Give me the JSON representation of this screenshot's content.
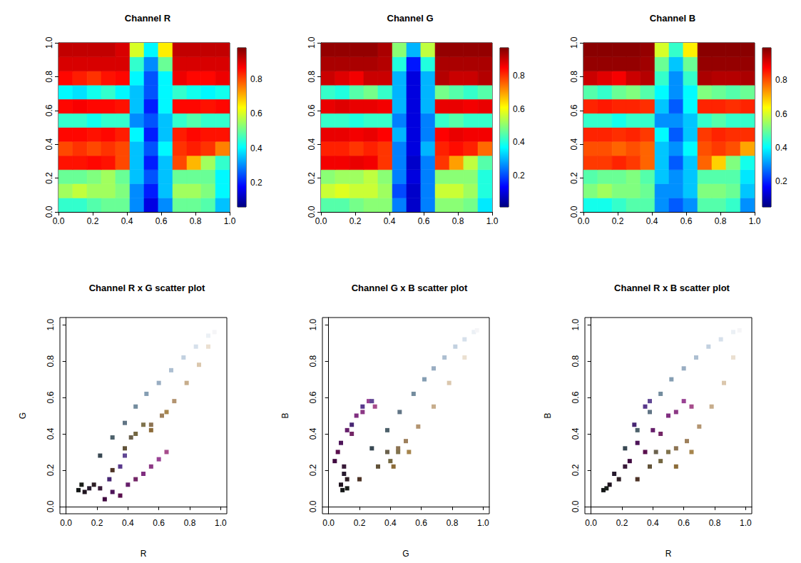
{
  "chart_data": [
    {
      "type": "heatmap",
      "title": "Channel R",
      "x_bins": [
        0,
        0.083,
        0.167,
        0.25,
        0.333,
        0.417,
        0.5,
        0.583,
        0.667,
        0.75,
        0.833,
        0.917,
        1
      ],
      "y_bins": [
        0,
        0.083,
        0.167,
        0.25,
        0.333,
        0.417,
        0.5,
        0.583,
        0.667,
        0.75,
        0.833,
        0.917,
        1
      ],
      "cells": [
        [
          0.45,
          0.45,
          0.48,
          0.5,
          0.5,
          0.3,
          0.15,
          0.3,
          0.5,
          0.5,
          0.48,
          0.35
        ],
        [
          0.55,
          0.58,
          0.55,
          0.55,
          0.52,
          0.3,
          0.2,
          0.35,
          0.55,
          0.55,
          0.52,
          0.4
        ],
        [
          0.5,
          0.5,
          0.52,
          0.55,
          0.5,
          0.35,
          0.25,
          0.35,
          0.5,
          0.5,
          0.5,
          0.4
        ],
        [
          0.85,
          0.85,
          0.86,
          0.85,
          0.8,
          0.35,
          0.2,
          0.35,
          0.8,
          0.7,
          0.55,
          0.45
        ],
        [
          0.8,
          0.82,
          0.8,
          0.82,
          0.8,
          0.35,
          0.25,
          0.4,
          0.82,
          0.84,
          0.82,
          0.75
        ],
        [
          0.86,
          0.86,
          0.85,
          0.86,
          0.84,
          0.4,
          0.2,
          0.35,
          0.84,
          0.86,
          0.85,
          0.85
        ],
        [
          0.45,
          0.45,
          0.42,
          0.45,
          0.45,
          0.3,
          0.25,
          0.35,
          0.45,
          0.48,
          0.45,
          0.45
        ],
        [
          0.86,
          0.87,
          0.86,
          0.86,
          0.85,
          0.35,
          0.2,
          0.4,
          0.86,
          0.86,
          0.85,
          0.86
        ],
        [
          0.4,
          0.38,
          0.42,
          0.45,
          0.4,
          0.35,
          0.25,
          0.4,
          0.45,
          0.42,
          0.4,
          0.42
        ],
        [
          0.86,
          0.84,
          0.82,
          0.85,
          0.86,
          0.4,
          0.25,
          0.4,
          0.88,
          0.86,
          0.86,
          0.88
        ],
        [
          0.9,
          0.9,
          0.9,
          0.9,
          0.9,
          0.45,
          0.3,
          0.5,
          0.9,
          0.9,
          0.9,
          0.9
        ],
        [
          0.92,
          0.92,
          0.92,
          0.92,
          0.9,
          0.6,
          0.4,
          0.65,
          0.92,
          0.92,
          0.92,
          0.92
        ]
      ],
      "color_range": [
        0.06,
        0.98
      ],
      "color_ticks": [
        0.2,
        0.4,
        0.6,
        0.8
      ],
      "xlim": [
        0,
        1
      ],
      "ylim": [
        0,
        1
      ],
      "xticks": [
        {
          "value": 0,
          "label": "0.0"
        },
        0.2,
        0.4,
        0.6,
        0.8,
        {
          "value": 1,
          "label": "1.0"
        }
      ],
      "yticks": [
        {
          "value": 0,
          "label": "0.0"
        },
        0.2,
        0.4,
        0.6,
        0.8,
        {
          "value": 1,
          "label": "1.0"
        }
      ]
    },
    {
      "type": "heatmap",
      "title": "Channel G",
      "x_bins": [
        0,
        0.083,
        0.167,
        0.25,
        0.333,
        0.417,
        0.5,
        0.583,
        0.667,
        0.75,
        0.833,
        0.917,
        1
      ],
      "y_bins": [
        0,
        0.083,
        0.167,
        0.25,
        0.333,
        0.417,
        0.5,
        0.583,
        0.667,
        0.75,
        0.833,
        0.917,
        1
      ],
      "cells": [
        [
          0.45,
          0.45,
          0.48,
          0.5,
          0.5,
          0.25,
          0.08,
          0.25,
          0.5,
          0.5,
          0.48,
          0.35
        ],
        [
          0.56,
          0.58,
          0.56,
          0.56,
          0.52,
          0.2,
          0.08,
          0.25,
          0.56,
          0.56,
          0.52,
          0.4
        ],
        [
          0.5,
          0.52,
          0.52,
          0.55,
          0.5,
          0.25,
          0.1,
          0.25,
          0.5,
          0.5,
          0.5,
          0.4
        ],
        [
          0.86,
          0.86,
          0.87,
          0.86,
          0.8,
          0.25,
          0.08,
          0.25,
          0.8,
          0.7,
          0.55,
          0.45
        ],
        [
          0.82,
          0.82,
          0.8,
          0.82,
          0.8,
          0.25,
          0.1,
          0.3,
          0.82,
          0.84,
          0.82,
          0.75
        ],
        [
          0.87,
          0.87,
          0.86,
          0.87,
          0.85,
          0.3,
          0.1,
          0.25,
          0.85,
          0.87,
          0.86,
          0.86
        ],
        [
          0.42,
          0.42,
          0.4,
          0.42,
          0.42,
          0.25,
          0.1,
          0.25,
          0.42,
          0.45,
          0.42,
          0.42
        ],
        [
          0.87,
          0.88,
          0.87,
          0.87,
          0.86,
          0.3,
          0.1,
          0.3,
          0.87,
          0.87,
          0.86,
          0.87
        ],
        [
          0.42,
          0.4,
          0.45,
          0.48,
          0.42,
          0.3,
          0.1,
          0.3,
          0.48,
          0.45,
          0.42,
          0.45
        ],
        [
          0.9,
          0.88,
          0.86,
          0.9,
          0.9,
          0.3,
          0.1,
          0.3,
          0.92,
          0.9,
          0.9,
          0.92
        ],
        [
          0.93,
          0.93,
          0.93,
          0.93,
          0.92,
          0.4,
          0.15,
          0.4,
          0.93,
          0.93,
          0.93,
          0.93
        ],
        [
          0.95,
          0.95,
          0.95,
          0.95,
          0.93,
          0.5,
          0.3,
          0.55,
          0.95,
          0.95,
          0.95,
          0.95
        ]
      ],
      "color_range": [
        0.01,
        0.97
      ],
      "color_ticks": [
        0.2,
        0.4,
        0.6,
        0.8
      ],
      "xlim": [
        0,
        1
      ],
      "ylim": [
        0,
        1
      ],
      "xticks": [
        {
          "value": 0,
          "label": "0.0"
        },
        0.2,
        0.4,
        0.6,
        0.8,
        {
          "value": 1,
          "label": "1.0"
        }
      ],
      "yticks": [
        {
          "value": 0,
          "label": "0.0"
        },
        0.2,
        0.4,
        0.6,
        0.8,
        {
          "value": 1,
          "label": "1.0"
        }
      ]
    },
    {
      "type": "heatmap",
      "title": "Channel B",
      "x_bins": [
        0,
        0.083,
        0.167,
        0.25,
        0.333,
        0.417,
        0.5,
        0.583,
        0.667,
        0.75,
        0.833,
        0.917,
        1
      ],
      "y_bins": [
        0,
        0.083,
        0.167,
        0.25,
        0.333,
        0.417,
        0.5,
        0.583,
        0.667,
        0.75,
        0.833,
        0.917,
        1
      ],
      "cells": [
        [
          0.42,
          0.42,
          0.45,
          0.48,
          0.48,
          0.3,
          0.25,
          0.3,
          0.48,
          0.48,
          0.45,
          0.3
        ],
        [
          0.52,
          0.55,
          0.52,
          0.52,
          0.5,
          0.3,
          0.3,
          0.35,
          0.52,
          0.52,
          0.5,
          0.35
        ],
        [
          0.48,
          0.5,
          0.5,
          0.52,
          0.48,
          0.35,
          0.3,
          0.35,
          0.48,
          0.48,
          0.48,
          0.38
        ],
        [
          0.82,
          0.82,
          0.84,
          0.82,
          0.78,
          0.35,
          0.25,
          0.35,
          0.78,
          0.68,
          0.52,
          0.42
        ],
        [
          0.8,
          0.8,
          0.78,
          0.8,
          0.78,
          0.35,
          0.3,
          0.4,
          0.8,
          0.82,
          0.8,
          0.72
        ],
        [
          0.84,
          0.84,
          0.83,
          0.84,
          0.82,
          0.4,
          0.25,
          0.35,
          0.82,
          0.84,
          0.83,
          0.83
        ],
        [
          0.45,
          0.45,
          0.42,
          0.45,
          0.45,
          0.3,
          0.3,
          0.35,
          0.45,
          0.48,
          0.45,
          0.45
        ],
        [
          0.84,
          0.85,
          0.84,
          0.84,
          0.83,
          0.35,
          0.25,
          0.4,
          0.84,
          0.84,
          0.83,
          0.84
        ],
        [
          0.48,
          0.45,
          0.5,
          0.52,
          0.48,
          0.4,
          0.3,
          0.4,
          0.52,
          0.5,
          0.48,
          0.5
        ],
        [
          0.92,
          0.9,
          0.88,
          0.92,
          0.94,
          0.45,
          0.3,
          0.45,
          0.95,
          0.94,
          0.94,
          0.95
        ],
        [
          0.97,
          0.97,
          0.97,
          0.97,
          0.96,
          0.5,
          0.35,
          0.5,
          0.97,
          0.97,
          0.97,
          0.97
        ],
        [
          0.98,
          0.98,
          0.98,
          0.98,
          0.97,
          0.6,
          0.45,
          0.65,
          0.98,
          0.98,
          0.98,
          0.98
        ]
      ],
      "color_range": [
        0.05,
        0.99
      ],
      "color_ticks": [
        0.2,
        0.4,
        0.6,
        0.8
      ],
      "xlim": [
        0,
        1
      ],
      "ylim": [
        0,
        1
      ],
      "xticks": [
        {
          "value": 0,
          "label": "0.0"
        },
        0.2,
        0.4,
        0.6,
        0.8,
        {
          "value": 1,
          "label": "1.0"
        }
      ],
      "yticks": [
        {
          "value": 0,
          "label": "0.0"
        },
        0.2,
        0.4,
        0.6,
        0.8,
        {
          "value": 1,
          "label": "1.0"
        }
      ]
    },
    {
      "type": "scatter",
      "title": "Channel R x G scatter plot",
      "x_label": "R",
      "y_label": "G",
      "x": [
        0.08,
        0.12,
        0.15,
        0.18,
        0.1,
        0.22,
        0.25,
        0.3,
        0.35,
        0.4,
        0.45,
        0.5,
        0.55,
        0.6,
        0.65,
        0.28,
        0.35,
        0.38,
        0.22,
        0.3,
        0.38,
        0.45,
        0.52,
        0.6,
        0.68,
        0.76,
        0.84,
        0.92,
        0.96,
        0.38,
        0.45,
        0.5,
        0.42,
        0.55,
        0.62,
        0.7,
        0.78,
        0.86,
        0.92,
        0.65,
        0.3,
        0.55
      ],
      "values": [
        0.09,
        0.08,
        0.1,
        0.12,
        0.12,
        0.1,
        0.04,
        0.08,
        0.06,
        0.12,
        0.15,
        0.18,
        0.22,
        0.26,
        0.3,
        0.15,
        0.22,
        0.28,
        0.28,
        0.38,
        0.46,
        0.55,
        0.62,
        0.68,
        0.75,
        0.82,
        0.88,
        0.94,
        0.96,
        0.32,
        0.4,
        0.45,
        0.38,
        0.45,
        0.5,
        0.58,
        0.68,
        0.78,
        0.88,
        0.52,
        0.2,
        0.42
      ],
      "colors": [
        "#141717",
        "#1F141F",
        "#261A2E",
        "#2E1F26",
        "#1A1F1A",
        "#381A38",
        "#400A40",
        "#4D1459",
        "#590F4D",
        "#661F6B",
        "#732666",
        "#802E80",
        "#8C3885",
        "#994294",
        "#A64D8C",
        "#472673",
        "#59388C",
        "#614794",
        "#384752",
        "#4D616B",
        "#617585",
        "#738C9E",
        "#859EB3",
        "#99ADC2",
        "#ADBFD1",
        "#C2D1E0",
        "#D6E0EB",
        "#EBF0F5",
        "#F5F5F7",
        "#615238",
        "#736640",
        "#80734D",
        "#6B614D",
        "#8C7352",
        "#9E805C",
        "#B39470",
        "#C7AD8C",
        "#DBC7AD",
        "#EBE0D1",
        "#A6854D",
        "#4D3326",
        "#8C6B38"
      ],
      "marker": "square",
      "xlim": [
        -0.04,
        1.04
      ],
      "ylim": [
        -0.04,
        1.04
      ],
      "xticks": [
        {
          "value": 0,
          "label": "0.0"
        },
        0.2,
        0.4,
        0.6,
        0.8,
        {
          "value": 1,
          "label": "1.0"
        }
      ],
      "yticks": [
        {
          "value": 0,
          "label": "0.0"
        },
        0.2,
        0.4,
        0.6,
        0.8,
        {
          "value": 1,
          "label": "1.0"
        }
      ]
    },
    {
      "type": "scatter",
      "title": "Channel G x B scatter plot",
      "x_label": "G",
      "y_label": "B",
      "x": [
        0.09,
        0.08,
        0.1,
        0.12,
        0.12,
        0.1,
        0.04,
        0.08,
        0.06,
        0.12,
        0.15,
        0.18,
        0.22,
        0.26,
        0.3,
        0.15,
        0.22,
        0.28,
        0.28,
        0.38,
        0.46,
        0.55,
        0.62,
        0.68,
        0.75,
        0.82,
        0.88,
        0.94,
        0.96,
        0.32,
        0.4,
        0.45,
        0.38,
        0.45,
        0.5,
        0.58,
        0.68,
        0.78,
        0.88,
        0.52,
        0.2,
        0.42
      ],
      "values": [
        0.09,
        0.12,
        0.18,
        0.15,
        0.1,
        0.22,
        0.25,
        0.35,
        0.3,
        0.42,
        0.4,
        0.5,
        0.52,
        0.58,
        0.55,
        0.45,
        0.55,
        0.58,
        0.32,
        0.42,
        0.52,
        0.62,
        0.7,
        0.76,
        0.82,
        0.88,
        0.92,
        0.96,
        0.97,
        0.22,
        0.25,
        0.3,
        0.3,
        0.32,
        0.36,
        0.44,
        0.55,
        0.68,
        0.82,
        0.3,
        0.15,
        0.22
      ],
      "colors": [
        "#141717",
        "#1F141F",
        "#261A2E",
        "#2E1F26",
        "#1A1F1A",
        "#381A38",
        "#400A40",
        "#4D1459",
        "#590F4D",
        "#661F6B",
        "#732666",
        "#802E80",
        "#8C3885",
        "#994294",
        "#A64D8C",
        "#472673",
        "#59388C",
        "#614794",
        "#384752",
        "#4D616B",
        "#617585",
        "#738C9E",
        "#859EB3",
        "#99ADC2",
        "#ADBFD1",
        "#C2D1E0",
        "#D6E0EB",
        "#EBF0F5",
        "#F5F5F7",
        "#615238",
        "#736640",
        "#80734D",
        "#6B614D",
        "#8C7352",
        "#9E805C",
        "#B39470",
        "#C7AD8C",
        "#DBC7AD",
        "#EBE0D1",
        "#A6854D",
        "#4D3326",
        "#8C6B38"
      ],
      "marker": "square",
      "xlim": [
        -0.04,
        1.04
      ],
      "ylim": [
        -0.04,
        1.04
      ],
      "xticks": [
        {
          "value": 0,
          "label": "0.0"
        },
        0.2,
        0.4,
        0.6,
        0.8,
        {
          "value": 1,
          "label": "1.0"
        }
      ],
      "yticks": [
        {
          "value": 0,
          "label": "0.0"
        },
        0.2,
        0.4,
        0.6,
        0.8,
        {
          "value": 1,
          "label": "1.0"
        }
      ]
    },
    {
      "type": "scatter",
      "title": "Channel R x B scatter plot",
      "x_label": "R",
      "y_label": "B",
      "x": [
        0.08,
        0.12,
        0.15,
        0.18,
        0.1,
        0.22,
        0.25,
        0.3,
        0.35,
        0.4,
        0.45,
        0.5,
        0.55,
        0.6,
        0.65,
        0.28,
        0.35,
        0.38,
        0.22,
        0.3,
        0.38,
        0.45,
        0.52,
        0.6,
        0.68,
        0.76,
        0.84,
        0.92,
        0.96,
        0.38,
        0.45,
        0.5,
        0.42,
        0.55,
        0.62,
        0.7,
        0.78,
        0.86,
        0.92,
        0.65,
        0.3,
        0.55
      ],
      "values": [
        0.09,
        0.12,
        0.18,
        0.15,
        0.1,
        0.22,
        0.25,
        0.35,
        0.3,
        0.42,
        0.4,
        0.5,
        0.52,
        0.58,
        0.55,
        0.45,
        0.55,
        0.58,
        0.32,
        0.42,
        0.52,
        0.62,
        0.7,
        0.76,
        0.82,
        0.88,
        0.92,
        0.96,
        0.97,
        0.22,
        0.25,
        0.3,
        0.3,
        0.32,
        0.36,
        0.44,
        0.55,
        0.68,
        0.82,
        0.3,
        0.15,
        0.22
      ],
      "colors": [
        "#141717",
        "#1F141F",
        "#261A2E",
        "#2E1F26",
        "#1A1F1A",
        "#381A38",
        "#400A40",
        "#4D1459",
        "#590F4D",
        "#661F6B",
        "#732666",
        "#802E80",
        "#8C3885",
        "#994294",
        "#A64D8C",
        "#472673",
        "#59388C",
        "#614794",
        "#384752",
        "#4D616B",
        "#617585",
        "#738C9E",
        "#859EB3",
        "#99ADC2",
        "#ADBFD1",
        "#C2D1E0",
        "#D6E0EB",
        "#EBF0F5",
        "#F5F5F7",
        "#615238",
        "#736640",
        "#80734D",
        "#6B614D",
        "#8C7352",
        "#9E805C",
        "#B39470",
        "#C7AD8C",
        "#DBC7AD",
        "#EBE0D1",
        "#A6854D",
        "#4D3326",
        "#8C6B38"
      ],
      "marker": "square",
      "xlim": [
        -0.04,
        1.04
      ],
      "ylim": [
        -0.04,
        1.04
      ],
      "xticks": [
        {
          "value": 0,
          "label": "0.0"
        },
        0.2,
        0.4,
        0.6,
        0.8,
        {
          "value": 1,
          "label": "1.0"
        }
      ],
      "yticks": [
        {
          "value": 0,
          "label": "0.0"
        },
        0.2,
        0.4,
        0.6,
        0.8,
        {
          "value": 1,
          "label": "1.0"
        }
      ]
    }
  ]
}
